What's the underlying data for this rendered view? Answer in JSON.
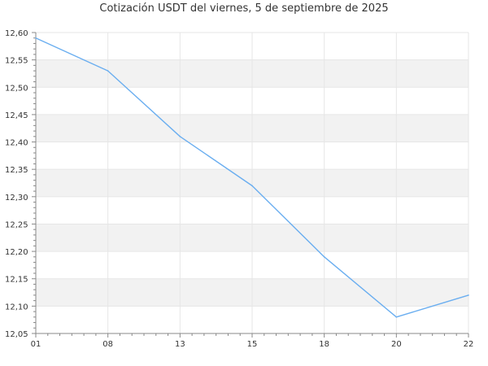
{
  "chart_data": {
    "type": "line",
    "title": "Cotización USDT del viernes, 5 de septiembre de 2025",
    "xlabel": "",
    "ylabel": "",
    "categories": [
      "01",
      "08",
      "13",
      "15",
      "18",
      "20",
      "22"
    ],
    "series": [
      {
        "values": [
          12.59,
          12.53,
          12.41,
          12.32,
          12.19,
          12.08,
          12.12
        ]
      }
    ],
    "ylim": [
      12.05,
      12.6
    ],
    "yticks": [
      "12,05",
      "12,10",
      "12,15",
      "12,20",
      "12,25",
      "12,30",
      "12,35",
      "12,40",
      "12,45",
      "12,50",
      "12,55",
      "12,60"
    ],
    "grid": true,
    "legend": "none",
    "colors": {
      "line": "#6aaef0",
      "band": "#f2f2f2",
      "grid": "#e6e6e6",
      "axis": "#888888",
      "text": "#333333"
    }
  }
}
